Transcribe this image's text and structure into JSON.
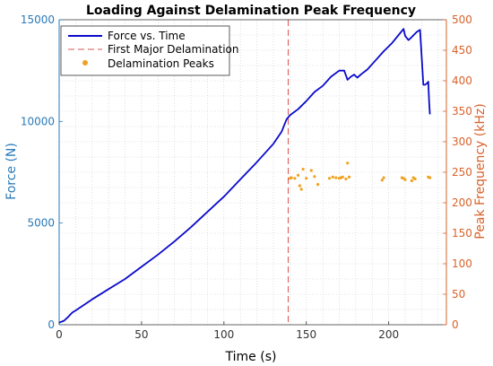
{
  "chart_data": {
    "type": "line",
    "title": "Loading Against Delamination Peak Frequency",
    "xlabel": "Time (s)",
    "ylabel_left": "Force (N)",
    "ylabel_right": "Peak Frequency (kHz)",
    "xlim": [
      0,
      235
    ],
    "ylim_left": [
      0,
      15000
    ],
    "ylim_right": [
      0,
      500
    ],
    "x_ticks": [
      0,
      50,
      100,
      150,
      200
    ],
    "y_left_ticks": [
      0,
      5000,
      10000,
      15000
    ],
    "y_right_ticks": [
      0,
      50,
      100,
      150,
      200,
      250,
      300,
      350,
      400,
      450,
      500
    ],
    "grid": true,
    "legend_position": "top-left",
    "colors": {
      "force": "#0a0acc",
      "delam_line": "#d9534f",
      "peaks": "#f0a020",
      "left_axis": "#2a7ab8",
      "right_axis": "#d9622b"
    },
    "series": [
      {
        "name": "Force vs. Time",
        "axis": "left",
        "style": "solid",
        "points": [
          [
            0,
            100
          ],
          [
            3,
            200
          ],
          [
            5,
            350
          ],
          [
            8,
            600
          ],
          [
            10,
            700
          ],
          [
            20,
            1250
          ],
          [
            30,
            1750
          ],
          [
            40,
            2250
          ],
          [
            50,
            2850
          ],
          [
            60,
            3450
          ],
          [
            70,
            4100
          ],
          [
            80,
            4800
          ],
          [
            90,
            5550
          ],
          [
            100,
            6300
          ],
          [
            110,
            7150
          ],
          [
            120,
            8000
          ],
          [
            130,
            8900
          ],
          [
            135,
            9500
          ],
          [
            138,
            10100
          ],
          [
            140,
            10300
          ],
          [
            145,
            10600
          ],
          [
            150,
            11000
          ],
          [
            155,
            11450
          ],
          [
            160,
            11750
          ],
          [
            165,
            12200
          ],
          [
            170,
            12500
          ],
          [
            173,
            12500
          ],
          [
            175,
            12050
          ],
          [
            177,
            12200
          ],
          [
            179,
            12300
          ],
          [
            181,
            12150
          ],
          [
            183,
            12300
          ],
          [
            187,
            12550
          ],
          [
            192,
            13000
          ],
          [
            197,
            13450
          ],
          [
            202,
            13850
          ],
          [
            206,
            14250
          ],
          [
            209,
            14550
          ],
          [
            210,
            14200
          ],
          [
            212,
            14000
          ],
          [
            214,
            14150
          ],
          [
            217,
            14400
          ],
          [
            219,
            14500
          ],
          [
            220,
            13200
          ],
          [
            221,
            11800
          ],
          [
            222,
            11800
          ],
          [
            223,
            11850
          ],
          [
            224,
            11950
          ],
          [
            224.5,
            11000
          ],
          [
            225,
            10350
          ]
        ]
      },
      {
        "name": "First Major Delamination",
        "axis": "left",
        "style": "dashed",
        "x": 139
      },
      {
        "name": "Delamination Peaks",
        "axis": "right",
        "style": "scatter",
        "points": [
          [
            140,
            240
          ],
          [
            141,
            241
          ],
          [
            143,
            240
          ],
          [
            145,
            245
          ],
          [
            146,
            228
          ],
          [
            147,
            222
          ],
          [
            148,
            255
          ],
          [
            150,
            240
          ],
          [
            153,
            253
          ],
          [
            155,
            243
          ],
          [
            157,
            230
          ],
          [
            164,
            240
          ],
          [
            166,
            242
          ],
          [
            168,
            241
          ],
          [
            170,
            240
          ],
          [
            171,
            241
          ],
          [
            172,
            242
          ],
          [
            174,
            239
          ],
          [
            175,
            265
          ],
          [
            176,
            242
          ],
          [
            196,
            237
          ],
          [
            197,
            241
          ],
          [
            208,
            241
          ],
          [
            209,
            240
          ],
          [
            210,
            238
          ],
          [
            214,
            236
          ],
          [
            215,
            241
          ],
          [
            216,
            239
          ],
          [
            224,
            242
          ],
          [
            225,
            241
          ]
        ]
      }
    ]
  }
}
